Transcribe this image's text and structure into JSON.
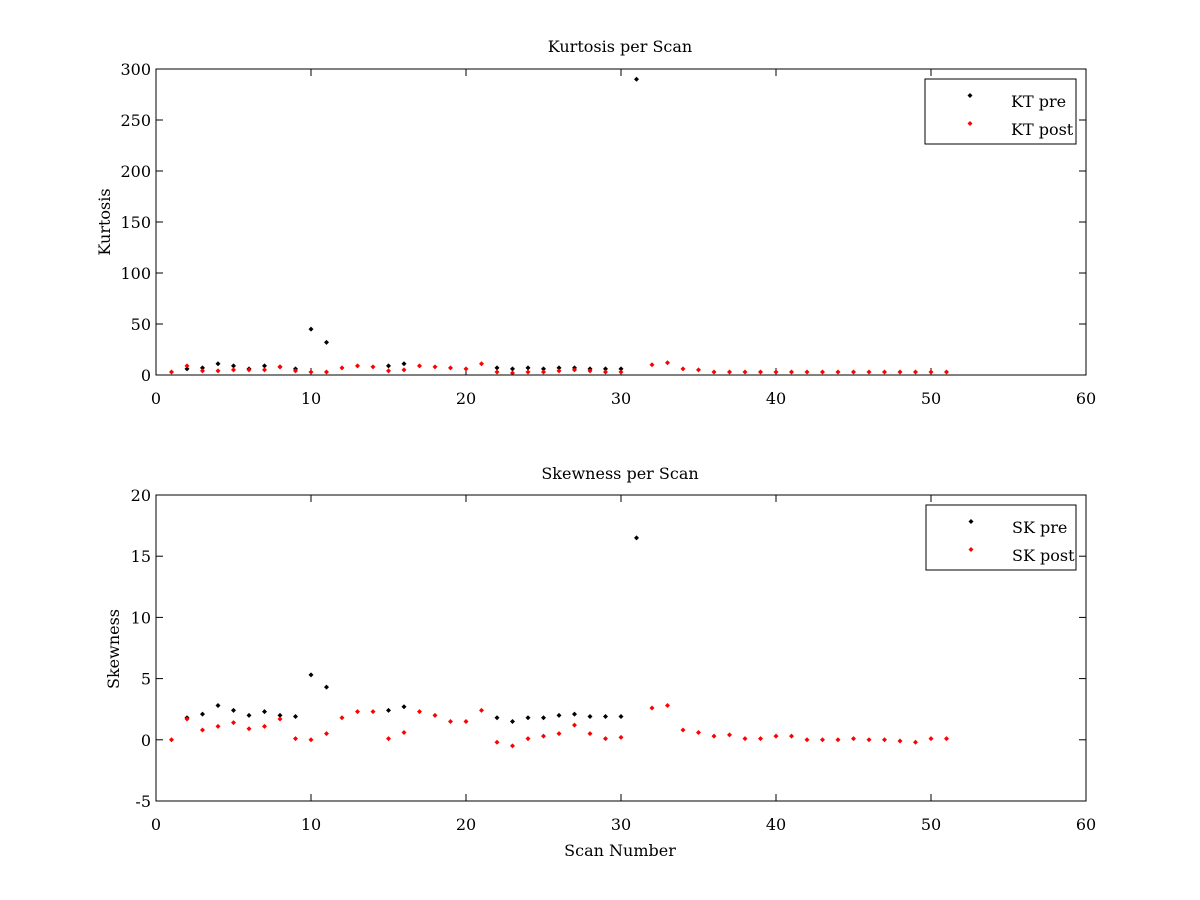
{
  "chart_data": [
    {
      "type": "scatter",
      "title": "Kurtosis per Scan",
      "xlabel": "",
      "ylabel": "Kurtosis",
      "xlim": [
        0,
        60
      ],
      "ylim": [
        0,
        300
      ],
      "xticks": [
        "0",
        "10",
        "20",
        "30",
        "40",
        "50",
        "60"
      ],
      "yticks": [
        "0",
        "50",
        "100",
        "150",
        "200",
        "250",
        "300"
      ],
      "legend_position": "top-right",
      "series": [
        {
          "name": "KT pre",
          "color": "#000000",
          "x": [
            2,
            3,
            4,
            5,
            6,
            7,
            8,
            9,
            10,
            11,
            15,
            16,
            22,
            23,
            24,
            25,
            26,
            27,
            28,
            29,
            30,
            31
          ],
          "y": [
            6,
            7,
            11,
            9,
            6,
            9,
            8,
            6,
            45,
            32,
            9,
            11,
            7,
            6,
            7,
            6,
            7,
            7,
            6,
            6,
            6,
            290
          ]
        },
        {
          "name": "KT post",
          "color": "#ff0000",
          "x": [
            1,
            2,
            3,
            4,
            5,
            6,
            7,
            8,
            9,
            10,
            11,
            12,
            13,
            14,
            15,
            16,
            17,
            18,
            19,
            20,
            21,
            22,
            23,
            24,
            25,
            26,
            27,
            28,
            29,
            30,
            32,
            33,
            34,
            35,
            36,
            37,
            38,
            39,
            40,
            41,
            42,
            43,
            44,
            45,
            46,
            47,
            48,
            49,
            50,
            51
          ],
          "y": [
            3,
            9,
            4,
            4,
            5,
            5,
            5,
            8,
            4,
            3,
            3,
            7,
            9,
            8,
            4,
            5,
            9,
            8,
            7,
            6,
            11,
            3,
            2,
            3,
            3,
            4,
            5,
            4,
            3,
            3,
            10,
            12,
            6,
            5,
            3,
            3,
            3,
            3,
            3,
            3,
            3,
            3,
            3,
            3,
            3,
            3,
            3,
            3,
            3,
            3
          ]
        }
      ]
    },
    {
      "type": "scatter",
      "title": "Skewness per Scan",
      "xlabel": "Scan Number",
      "ylabel": "Skewness",
      "xlim": [
        0,
        60
      ],
      "ylim": [
        -5,
        20
      ],
      "xticks": [
        "0",
        "10",
        "20",
        "30",
        "40",
        "50",
        "60"
      ],
      "yticks": [
        "-5",
        "0",
        "5",
        "10",
        "15",
        "20"
      ],
      "legend_position": "top-right",
      "series": [
        {
          "name": "SK pre",
          "color": "#000000",
          "x": [
            2,
            3,
            4,
            5,
            6,
            7,
            8,
            9,
            10,
            11,
            15,
            16,
            22,
            23,
            24,
            25,
            26,
            27,
            28,
            29,
            30,
            31
          ],
          "y": [
            1.8,
            2.1,
            2.8,
            2.4,
            2.0,
            2.3,
            2.0,
            1.9,
            5.3,
            4.3,
            2.4,
            2.7,
            1.8,
            1.5,
            1.8,
            1.8,
            2.0,
            2.1,
            1.9,
            1.9,
            1.9,
            16.5
          ]
        },
        {
          "name": "SK post",
          "color": "#ff0000",
          "x": [
            1,
            2,
            3,
            4,
            5,
            6,
            7,
            8,
            9,
            10,
            11,
            12,
            13,
            14,
            15,
            16,
            17,
            18,
            19,
            20,
            21,
            22,
            23,
            24,
            25,
            26,
            27,
            28,
            29,
            30,
            32,
            33,
            34,
            35,
            36,
            37,
            38,
            39,
            40,
            41,
            42,
            43,
            44,
            45,
            46,
            47,
            48,
            49,
            50,
            51
          ],
          "y": [
            0.0,
            1.7,
            0.8,
            1.1,
            1.4,
            0.9,
            1.1,
            1.7,
            0.1,
            0.0,
            0.5,
            1.8,
            2.3,
            2.3,
            0.1,
            0.6,
            2.3,
            2.0,
            1.5,
            1.5,
            2.4,
            -0.2,
            -0.5,
            0.1,
            0.3,
            0.5,
            1.2,
            0.5,
            0.1,
            0.2,
            2.6,
            2.8,
            0.8,
            0.6,
            0.3,
            0.4,
            0.1,
            0.1,
            0.3,
            0.3,
            0.0,
            0.0,
            0.0,
            0.1,
            0.0,
            0.0,
            -0.1,
            -0.2,
            0.1,
            0.1
          ]
        }
      ]
    }
  ]
}
